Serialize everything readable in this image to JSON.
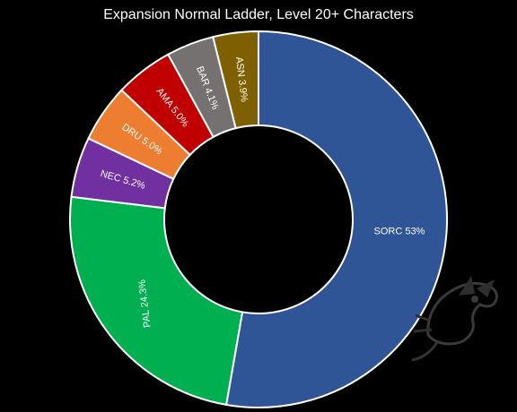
{
  "chart_data": {
    "type": "pie",
    "variant": "donut",
    "title": "Expansion Normal Ladder, Level 20+ Characters",
    "legend": "none",
    "slices": [
      {
        "label": "SORC 53%",
        "value": 53.0,
        "color": "#2f5597"
      },
      {
        "label": "PAL 24.3%",
        "value": 24.3,
        "color": "#00b050"
      },
      {
        "label": "NEC 5.2%",
        "value": 5.2,
        "color": "#7030a0"
      },
      {
        "label": "DRU 5.0%",
        "value": 5.0,
        "color": "#ed7d31"
      },
      {
        "label": "AMA 5.0%",
        "value": 5.0,
        "color": "#c00000"
      },
      {
        "label": "BAR 4.1%",
        "value": 4.1,
        "color": "#767171"
      },
      {
        "label": "ASN 3.9%",
        "value": 3.9,
        "color": "#7f6000"
      }
    ]
  },
  "colors": {
    "background": "#000000",
    "slice_border": "#ffffff",
    "text": "#ffffff",
    "watermark": "#3a3a3a"
  }
}
